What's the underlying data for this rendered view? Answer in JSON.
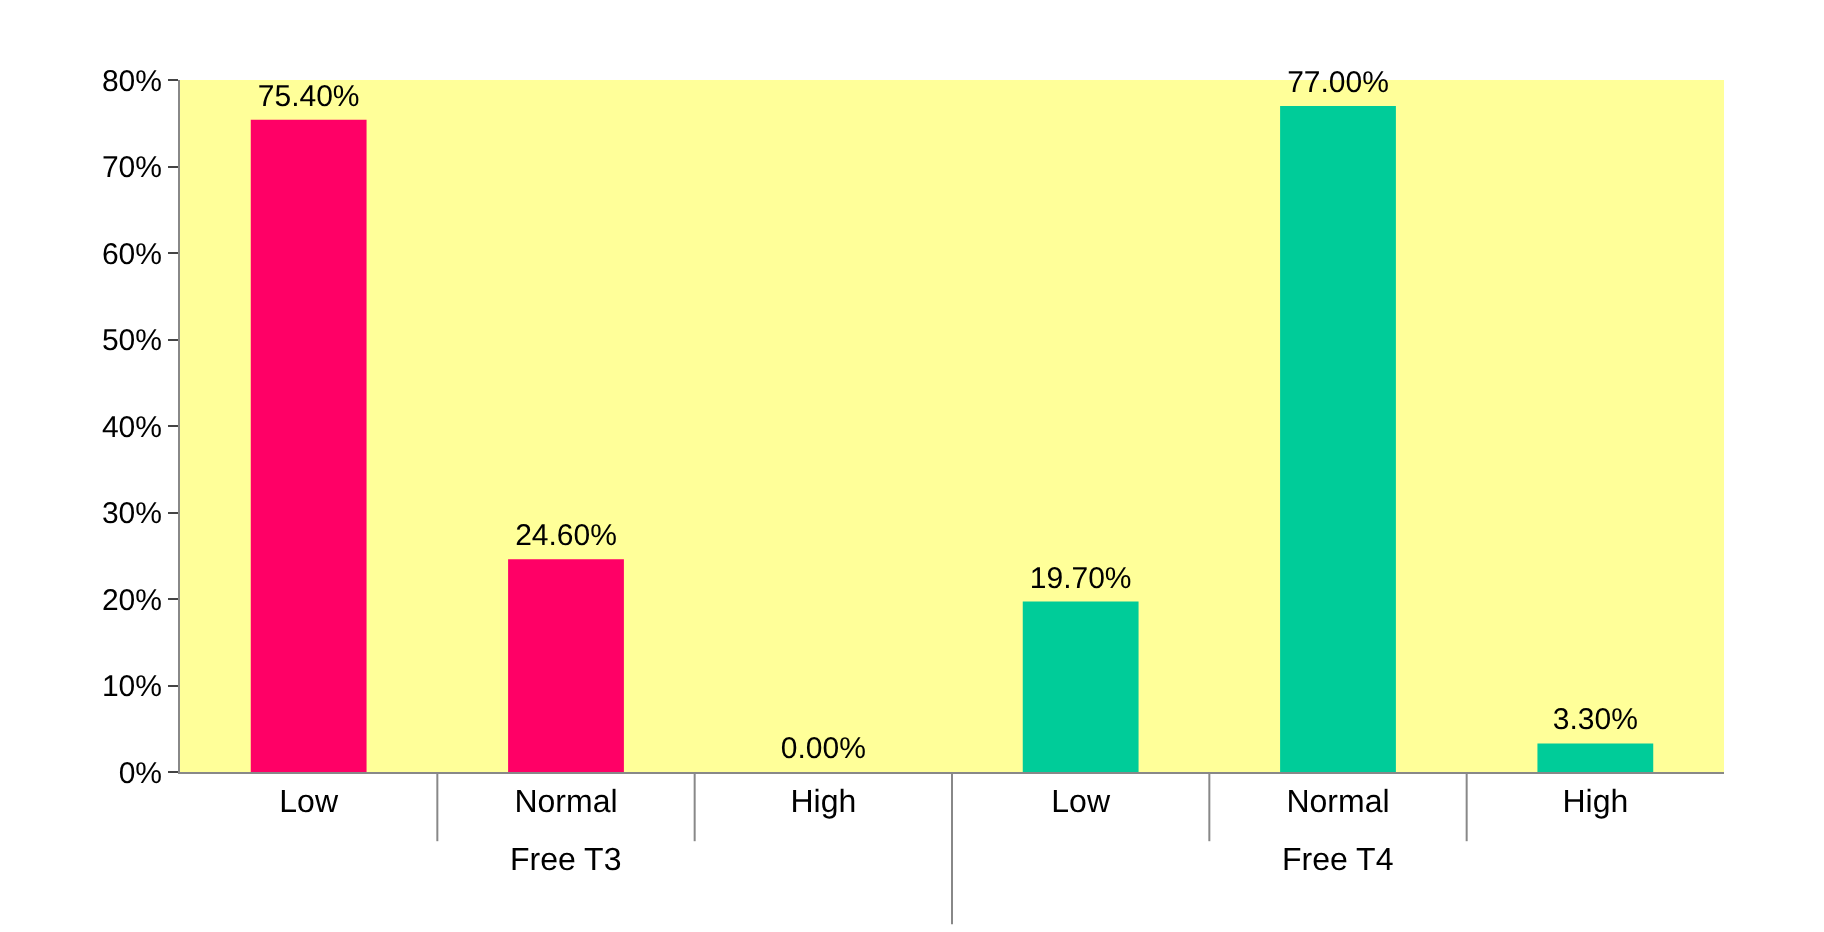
{
  "chart_data": {
    "type": "bar",
    "categories": [
      "Low",
      "Normal",
      "High",
      "Low",
      "Normal",
      "High"
    ],
    "values": [
      75.4,
      24.6,
      0.0,
      19.7,
      77.0,
      3.3
    ],
    "colors": [
      "#ff0066",
      "#ff0066",
      "#ff0066",
      "#00cc99",
      "#00cc99",
      "#00cc99"
    ],
    "value_labels": [
      "75.40%",
      "24.60%",
      "0.00%",
      "19.70%",
      "77.00%",
      "3.30%"
    ],
    "ylim": [
      0,
      80
    ],
    "yticks": [
      {
        "value": 0,
        "label": "0%"
      },
      {
        "value": 10,
        "label": "10%"
      },
      {
        "value": 20,
        "label": "20%"
      },
      {
        "value": 30,
        "label": "30%"
      },
      {
        "value": 40,
        "label": "40%"
      },
      {
        "value": 50,
        "label": "50%"
      },
      {
        "value": 60,
        "label": "60%"
      },
      {
        "value": 70,
        "label": "70%"
      },
      {
        "value": 80,
        "label": "80%"
      }
    ],
    "annotations": [
      "Free T3",
      "Free T4"
    ],
    "grid": false,
    "legend": false
  }
}
